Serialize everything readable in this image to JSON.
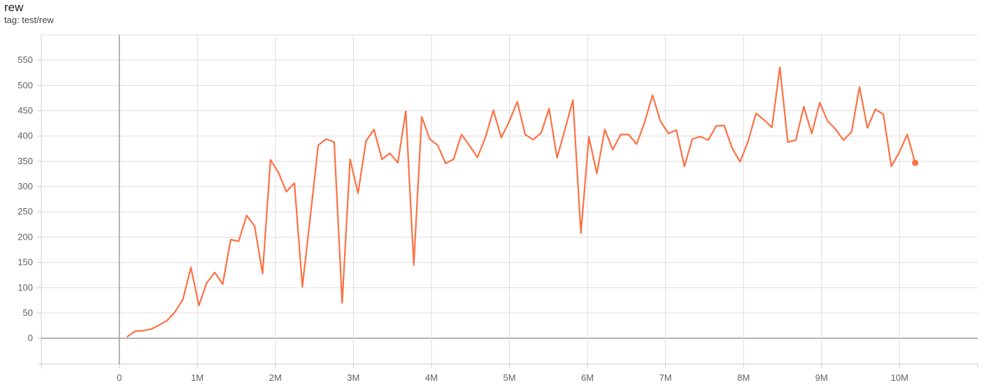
{
  "card": {
    "title": "rew",
    "subtitle": "tag: test/rew"
  },
  "chart_data": {
    "type": "line",
    "title": "rew",
    "subtitle": "tag: test/rew",
    "xlabel": "",
    "ylabel": "",
    "xlim": [
      -1000000,
      11000000
    ],
    "ylim": [
      -51,
      600
    ],
    "grid": true,
    "x_ticks": [
      {
        "value": 0,
        "label": "0"
      },
      {
        "value": 1000000,
        "label": "1M"
      },
      {
        "value": 2000000,
        "label": "2M"
      },
      {
        "value": 3000000,
        "label": "3M"
      },
      {
        "value": 4000000,
        "label": "4M"
      },
      {
        "value": 5000000,
        "label": "5M"
      },
      {
        "value": 6000000,
        "label": "6M"
      },
      {
        "value": 7000000,
        "label": "7M"
      },
      {
        "value": 8000000,
        "label": "8M"
      },
      {
        "value": 9000000,
        "label": "9M"
      },
      {
        "value": 10000000,
        "label": "10M"
      }
    ],
    "y_ticks": [
      0,
      50,
      100,
      150,
      200,
      250,
      300,
      350,
      400,
      450,
      500,
      550
    ],
    "series": [
      {
        "color": "#ff7043",
        "x": [
          102000,
          204000,
          306000,
          408000,
          510000,
          612000,
          714000,
          816000,
          918000,
          1020000,
          1122000,
          1224000,
          1326000,
          1428000,
          1530000,
          1632000,
          1734000,
          1836000,
          1938000,
          2040000,
          2142000,
          2244000,
          2346000,
          2448000,
          2550000,
          2652000,
          2754000,
          2856000,
          2958000,
          3060000,
          3162000,
          3264000,
          3366000,
          3468000,
          3570000,
          3672000,
          3774000,
          3876000,
          3978000,
          4080000,
          4182000,
          4284000,
          4386000,
          4488000,
          4590000,
          4692000,
          4794000,
          4896000,
          4998000,
          5100000,
          5202000,
          5304000,
          5406000,
          5508000,
          5610000,
          5712000,
          5814000,
          5916000,
          6018000,
          6120000,
          6222000,
          6324000,
          6426000,
          6528000,
          6630000,
          6732000,
          6834000,
          6936000,
          7038000,
          7140000,
          7242000,
          7344000,
          7446000,
          7548000,
          7650000,
          7752000,
          7854000,
          7956000,
          8058000,
          8160000,
          8262000,
          8364000,
          8466000,
          8568000,
          8670000,
          8772000,
          8874000,
          8976000,
          9078000,
          9180000,
          9282000,
          9384000,
          9486000,
          9588000,
          9690000,
          9792000,
          9894000,
          9996000,
          10098000,
          10200000
        ],
        "values": [
          3,
          14,
          15,
          18,
          26,
          35,
          52,
          77,
          140,
          65,
          110,
          130,
          107,
          195,
          192,
          243,
          222,
          128,
          353,
          328,
          290,
          307,
          102,
          240,
          382,
          394,
          388,
          70,
          354,
          287,
          390,
          413,
          354,
          366,
          347,
          449,
          145,
          438,
          394,
          382,
          346,
          354,
          403,
          381,
          358,
          397,
          451,
          397,
          429,
          468,
          403,
          393,
          406,
          454,
          357,
          413,
          471,
          208,
          398,
          326,
          413,
          373,
          403,
          403,
          384,
          427,
          481,
          429,
          405,
          412,
          340,
          394,
          399,
          392,
          420,
          421,
          376,
          349,
          389,
          445,
          432,
          417,
          536,
          388,
          392,
          458,
          405,
          466,
          430,
          413,
          392,
          408,
          497,
          416,
          453,
          443,
          340,
          368,
          403,
          347
        ]
      }
    ]
  }
}
